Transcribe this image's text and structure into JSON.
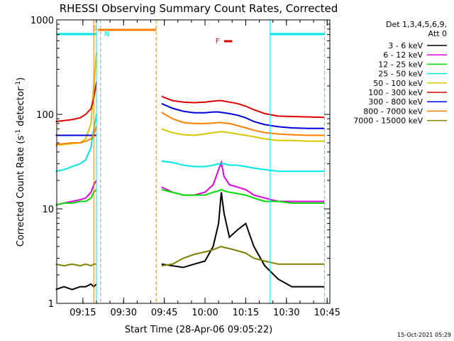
{
  "chart_data": {
    "type": "line",
    "title": "RHESSI Observing Summary Count Rates, Corrected",
    "xlabel": "Start Time (28-Apr-06 09:05:22)",
    "ylabel_main": "Corrected Count Rate (s",
    "ylabel_sup1": "-1",
    "ylabel_mid": " detector",
    "ylabel_sup2": "-1",
    "ylabel_end": ")",
    "y_scale": "log",
    "ylim": [
      1,
      1000
    ],
    "xlim": [
      "09:05:22",
      "10:46:00"
    ],
    "y_ticks": [
      "1",
      "10",
      "100",
      "1000"
    ],
    "x_ticks": [
      "09:15",
      "09:30",
      "09:45",
      "10:00",
      "10:15",
      "10:30",
      "10:45"
    ],
    "legend_header": [
      "Det 1,3,4,5,6,9,",
      "Att 0"
    ],
    "legend_placement": "right",
    "timestamp": "15-Oct-2021 05:29",
    "markers": {
      "saa": "S",
      "night": "N",
      "flare": "F"
    },
    "series": [
      {
        "name": "3 - 6 keV",
        "color": "#000000"
      },
      {
        "name": "6 - 12 keV",
        "color": "#e000e0"
      },
      {
        "name": "12 - 25 keV",
        "color": "#00e000"
      },
      {
        "name": "25 - 50 keV",
        "color": "#00e8e8"
      },
      {
        "name": "50 - 100 keV",
        "color": "#d8c800"
      },
      {
        "name": "100 - 300 keV",
        "color": "#e00000"
      },
      {
        "name": "300 - 800 keV",
        "color": "#0000e0"
      },
      {
        "name": "800 - 7000 keV",
        "color": "#ff8000"
      },
      {
        "name": "7000 - 15000 keV",
        "color": "#808000"
      }
    ],
    "data_segments": [
      {
        "x": [
          "09:05",
          "09:08",
          "09:11",
          "09:14",
          "09:16",
          "09:18",
          "09:19",
          "09:20"
        ],
        "values": {
          "3 - 6 keV": [
            1.4,
            1.5,
            1.4,
            1.5,
            1.5,
            1.6,
            1.5,
            1.6
          ],
          "6 - 12 keV": [
            11,
            11.5,
            12,
            12.5,
            13,
            15,
            18,
            20
          ],
          "12 - 25 keV": [
            11,
            11.5,
            11.5,
            12,
            12,
            13,
            15,
            16
          ],
          "25 - 50 keV": [
            25,
            26,
            28,
            30,
            33,
            45,
            70,
            100
          ],
          "50 - 100 keV": [
            47,
            48,
            49,
            50,
            55,
            80,
            200,
            450
          ],
          "100 - 300 keV": [
            84,
            86,
            88,
            92,
            100,
            115,
            150,
            220
          ],
          "300 - 800 keV": [
            60,
            60,
            60,
            60,
            60,
            60,
            60,
            60
          ],
          "800 - 7000 keV": [
            48,
            49,
            50,
            50,
            52,
            55,
            62,
            75
          ],
          "7000 - 15000 keV": [
            2.6,
            2.5,
            2.6,
            2.5,
            2.6,
            2.5,
            2.6,
            2.6
          ]
        }
      },
      {
        "x": [
          "09:44",
          "09:48",
          "09:52",
          "09:56",
          "10:00",
          "10:03",
          "10:05",
          "10:06",
          "10:07",
          "10:09",
          "10:12",
          "10:15",
          "10:18",
          "10:22",
          "10:27",
          "10:32",
          "10:38",
          "10:44"
        ],
        "values": {
          "3 - 6 keV": [
            2.6,
            2.5,
            2.4,
            2.6,
            2.8,
            4,
            7,
            15,
            9,
            5,
            6,
            7,
            4,
            2.5,
            1.8,
            1.5,
            1.5,
            1.5
          ],
          "6 - 12 keV": [
            17,
            15,
            14,
            14,
            15,
            18,
            26,
            31,
            22,
            18,
            17,
            16,
            14,
            13,
            12,
            12,
            12,
            12
          ],
          "12 - 25 keV": [
            16,
            15,
            14,
            14,
            14,
            15,
            15.5,
            16,
            15.5,
            15,
            14.5,
            14,
            13,
            12,
            12,
            11.5,
            11.5,
            11.5
          ],
          "25 - 50 keV": [
            32,
            31,
            29,
            28,
            28,
            29,
            30,
            30,
            30,
            29,
            29,
            28,
            27,
            26,
            25,
            25,
            25,
            25
          ],
          "50 - 100 keV": [
            70,
            64,
            61,
            60,
            62,
            64,
            65,
            66,
            65,
            64,
            62,
            60,
            58,
            55,
            53,
            53,
            52,
            52
          ],
          "100 - 300 keV": [
            155,
            140,
            135,
            133,
            135,
            138,
            140,
            140,
            138,
            135,
            130,
            122,
            112,
            102,
            96,
            95,
            94,
            93
          ],
          "300 - 800 keV": [
            130,
            116,
            108,
            104,
            104,
            106,
            106,
            105,
            104,
            102,
            98,
            92,
            84,
            78,
            74,
            72,
            71,
            71
          ],
          "800 - 7000 keV": [
            105,
            90,
            82,
            80,
            80,
            81,
            82,
            82,
            81,
            80,
            76,
            72,
            68,
            64,
            62,
            61,
            60,
            60
          ],
          "7000 - 15000 keV": [
            2.5,
            2.6,
            3,
            3.3,
            3.5,
            3.7,
            3.9,
            4,
            3.9,
            3.8,
            3.6,
            3.4,
            3,
            2.8,
            2.6,
            2.6,
            2.6,
            2.6
          ]
        }
      }
    ]
  }
}
